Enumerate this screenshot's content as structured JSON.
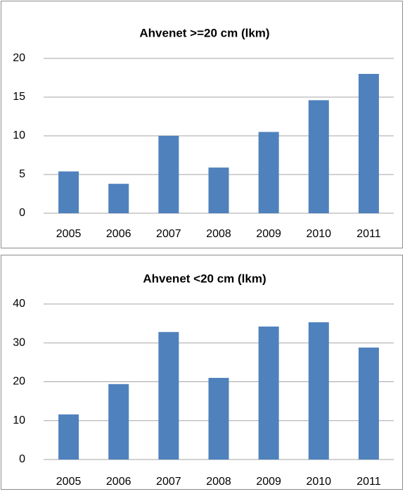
{
  "chart_data": [
    {
      "type": "bar",
      "title": "Ahvenet >=20 cm (lkm)",
      "categories": [
        "2005",
        "2006",
        "2007",
        "2008",
        "2009",
        "2010",
        "2011"
      ],
      "values": [
        5.4,
        3.8,
        10,
        5.9,
        10.5,
        14.6,
        18
      ],
      "color": "#4f81bd",
      "ylim": [
        0,
        20
      ],
      "yticks": [
        0,
        5,
        10,
        15,
        20
      ],
      "grid": true
    },
    {
      "type": "bar",
      "title": "Ahvenet <20 cm (lkm)",
      "categories": [
        "2005",
        "2006",
        "2007",
        "2008",
        "2009",
        "2010",
        "2011"
      ],
      "values": [
        11.6,
        19.4,
        32.8,
        21,
        34.2,
        35.3,
        28.8
      ],
      "color": "#4f81bd",
      "ylim": [
        0,
        40
      ],
      "yticks": [
        0,
        10,
        20,
        30,
        40
      ],
      "grid": true
    }
  ]
}
